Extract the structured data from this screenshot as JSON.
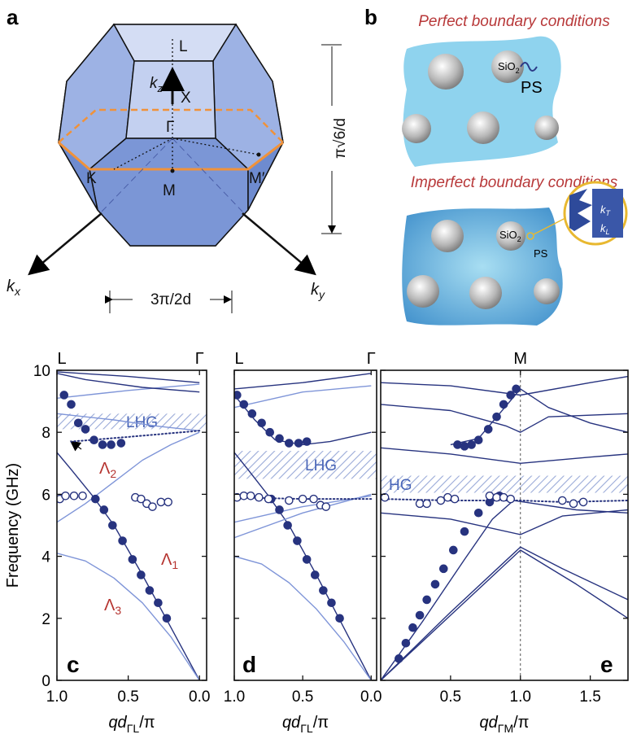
{
  "panel_a": {
    "label": "a",
    "L": "L",
    "X": "X",
    "Gamma": "Γ",
    "K": "K",
    "M": "M",
    "M_prime": "M′",
    "kz": [
      "k",
      "z"
    ],
    "kx": [
      "k",
      "x"
    ],
    "ky": [
      "k",
      "y"
    ],
    "width": "3π/2d",
    "height": "π√6/d"
  },
  "panel_b": {
    "label": "b",
    "perfect": "Perfect boundary conditions",
    "imperfect": "Imperfect boundary conditions",
    "sio2_top": [
      "SiO",
      "2"
    ],
    "ps_top": "PS",
    "sio2_bottom": [
      "SiO",
      "2"
    ],
    "ps_bottom": "PS",
    "kT": [
      "k",
      "T"
    ],
    "kL": [
      "k",
      "L"
    ]
  },
  "chart_data": [
    {
      "type": "line",
      "panel_label": "c",
      "ylabel": "Frequency (GHz)",
      "xlabel": [
        "qd",
        "ΓL",
        "/π"
      ],
      "xlim": [
        1.0,
        -0.05
      ],
      "ylim": [
        0,
        10
      ],
      "yticks": [
        0,
        2,
        4,
        6,
        8,
        10
      ],
      "xticks": [
        {
          "value": 1.0,
          "label": "1.0"
        },
        0.5,
        {
          "value": 0.0,
          "label": "0.0"
        }
      ],
      "top_labels": [
        {
          "value": 1.0,
          "label": "L"
        },
        {
          "value": 0.0,
          "label": "Γ"
        }
      ],
      "bands": [
        {
          "label": "LHG",
          "range": [
            8.1,
            8.6
          ]
        }
      ],
      "annotations": [
        [
          "Λ",
          "2"
        ],
        [
          "Λ",
          "1"
        ],
        [
          "Λ",
          "3"
        ]
      ],
      "series": [
        {
          "color": "#27337f",
          "x": [
            0,
            0.2,
            0.4,
            0.6,
            0.75,
            0.9,
            1.0
          ],
          "values": [
            0,
            1.7,
            3.4,
            5.0,
            5.95,
            6.8,
            7.35
          ]
        },
        {
          "color": "#7f95d8",
          "x": [
            0,
            0.2,
            0.4,
            0.6,
            0.8,
            1.0
          ],
          "values": [
            0,
            1.4,
            2.5,
            3.3,
            3.85,
            4.1
          ]
        },
        {
          "color": "#7f95d8",
          "x": [
            0,
            0.2,
            0.4,
            0.6,
            0.8,
            1.0
          ],
          "values": [
            8.0,
            7.6,
            7.1,
            6.4,
            5.7,
            5.1
          ]
        },
        {
          "color": "#7f95d8",
          "x": [
            0,
            0.3,
            0.6,
            1.0
          ],
          "values": [
            8.05,
            8.2,
            8.4,
            8.6
          ]
        },
        {
          "color": "#7f95d8",
          "x": [
            0,
            0.5,
            1.0
          ],
          "values": [
            9.55,
            9.35,
            9.1
          ]
        },
        {
          "color": "#27337f",
          "x": [
            0,
            0.5,
            1.0
          ],
          "values": [
            9.6,
            9.8,
            9.95
          ]
        },
        {
          "color": "#27337f",
          "x": [
            0,
            0.4,
            0.8,
            1.0
          ],
          "values": [
            9.3,
            9.45,
            9.7,
            9.9
          ]
        },
        {
          "color": "#27337f",
          "style": "dotted",
          "x": [
            0,
            0.5,
            0.9
          ],
          "values": [
            8.05,
            7.85,
            7.7
          ]
        },
        {
          "color": "#27337f",
          "marker": "filled",
          "x": [
            0.23,
            0.29,
            0.35,
            0.41,
            0.47,
            0.54,
            0.61,
            0.67,
            0.73
          ],
          "values": [
            2.0,
            2.5,
            2.9,
            3.4,
            3.9,
            4.5,
            5.0,
            5.5,
            5.85
          ]
        },
        {
          "color": "#27337f",
          "marker": "filled",
          "x": [
            0.95,
            0.9,
            0.85,
            0.8,
            0.74,
            0.68,
            0.62,
            0.55
          ],
          "values": [
            9.2,
            8.9,
            8.3,
            8.1,
            7.75,
            7.6,
            7.6,
            7.65
          ]
        },
        {
          "color": "#27337f",
          "marker": "open",
          "x": [
            0.98,
            0.94,
            0.88,
            0.82,
            0.45,
            0.41,
            0.37,
            0.33,
            0.27,
            0.22
          ],
          "values": [
            5.85,
            5.95,
            5.95,
            5.95,
            5.9,
            5.85,
            5.7,
            5.6,
            5.75,
            5.75
          ]
        }
      ]
    },
    {
      "type": "line",
      "panel_label": "d",
      "xlabel": [
        "qd",
        "ΓL",
        "/π"
      ],
      "xlim": [
        1.0,
        -0.04
      ],
      "ylim": [
        0,
        10
      ],
      "xticks": [
        {
          "value": 1.0,
          "label": "1.0"
        },
        0.5,
        {
          "value": 0.0,
          "label": "0.0"
        }
      ],
      "top_labels": [
        {
          "value": 1.0,
          "label": "L"
        },
        {
          "value": 0.0,
          "label": "Γ"
        }
      ],
      "bands": [
        {
          "label": "LHG",
          "range": [
            6.5,
            7.4
          ]
        }
      ],
      "series": [
        {
          "color": "#27337f",
          "x": [
            0,
            0.2,
            0.4,
            0.6,
            0.75,
            0.9,
            1.0
          ],
          "values": [
            0,
            1.7,
            3.4,
            5.0,
            5.95,
            6.8,
            7.35
          ]
        },
        {
          "color": "#7f95d8",
          "x": [
            0,
            0.2,
            0.4,
            0.6,
            0.8,
            1.0
          ],
          "values": [
            0,
            1.25,
            2.3,
            3.15,
            3.75,
            4.0
          ]
        },
        {
          "color": "#7f95d8",
          "x": [
            0,
            0.5,
            1.0
          ],
          "values": [
            6.0,
            5.4,
            4.6
          ]
        },
        {
          "color": "#7f95d8",
          "x": [
            0,
            0.5,
            1.0
          ],
          "values": [
            5.95,
            5.6,
            5.1
          ]
        },
        {
          "color": "#27337f",
          "x": [
            1.0,
            0.85,
            0.7,
            0.5,
            0.3,
            0.0
          ],
          "values": [
            9.2,
            8.4,
            7.75,
            7.6,
            7.7,
            8.0
          ]
        },
        {
          "color": "#7f95d8",
          "x": [
            0,
            0.5,
            1.0
          ],
          "values": [
            9.5,
            9.3,
            8.8
          ]
        },
        {
          "color": "#27337f",
          "x": [
            0,
            0.5,
            1.0
          ],
          "values": [
            9.9,
            9.6,
            9.4
          ]
        },
        {
          "color": "#27337f",
          "style": "dotted",
          "x": [
            0,
            0.5,
            1.0
          ],
          "values": [
            5.85,
            5.85,
            5.9
          ]
        },
        {
          "color": "#27337f",
          "marker": "filled",
          "x": [
            0.23,
            0.29,
            0.35,
            0.41,
            0.47,
            0.54,
            0.61,
            0.67,
            0.73
          ],
          "values": [
            2.0,
            2.5,
            2.9,
            3.4,
            3.9,
            4.5,
            5.0,
            5.5,
            5.85
          ]
        },
        {
          "color": "#27337f",
          "marker": "filled",
          "x": [
            0.98,
            0.93,
            0.87,
            0.8,
            0.74,
            0.67,
            0.6,
            0.53,
            0.47
          ],
          "values": [
            9.2,
            8.9,
            8.6,
            8.3,
            8.0,
            7.8,
            7.65,
            7.65,
            7.7
          ]
        },
        {
          "color": "#27337f",
          "marker": "open",
          "x": [
            0.98,
            0.93,
            0.88,
            0.82,
            0.75,
            0.6,
            0.5,
            0.42,
            0.37,
            0.33
          ],
          "values": [
            5.9,
            5.95,
            5.95,
            5.9,
            5.85,
            5.8,
            5.85,
            5.85,
            5.65,
            5.6
          ]
        }
      ]
    },
    {
      "type": "line",
      "panel_label": "e",
      "xlabel": [
        "qd",
        "ΓM",
        "/π"
      ],
      "xlim": [
        0,
        1.77
      ],
      "ylim": [
        0,
        10
      ],
      "xticks": [
        0.5,
        {
          "value": 1.0,
          "label": "1.0"
        },
        1.5
      ],
      "top_labels": [
        {
          "value": 1.0,
          "label": "M"
        }
      ],
      "vline": 1.0,
      "bands": [
        {
          "label": "HG",
          "range": [
            6.05,
            6.6
          ]
        }
      ],
      "series": [
        {
          "color": "#27337f",
          "x": [
            0,
            0.5,
            1.0,
            1.3,
            1.77
          ],
          "values": [
            0,
            2.2,
            4.3,
            3.6,
            2.6
          ]
        },
        {
          "color": "#27337f",
          "x": [
            0,
            0.5,
            1.0,
            1.4,
            1.77
          ],
          "values": [
            0,
            2.1,
            4.2,
            3.1,
            2.0
          ]
        },
        {
          "color": "#27337f",
          "x": [
            0,
            0.3,
            0.6,
            0.8,
            0.95,
            1.1,
            1.4,
            1.77
          ],
          "values": [
            0,
            1.9,
            3.9,
            5.2,
            5.8,
            5.7,
            5.5,
            5.4
          ]
        },
        {
          "color": "#27337f",
          "x": [
            0.5,
            0.7,
            0.85,
            1.0,
            1.2,
            1.5,
            1.77
          ],
          "values": [
            7.6,
            7.8,
            8.6,
            9.4,
            8.8,
            8.3,
            8.0
          ]
        },
        {
          "color": "#27337f",
          "style": "dotted",
          "x": [
            0,
            0.5,
            1.0,
            1.3,
            1.77
          ],
          "values": [
            5.85,
            5.8,
            5.8,
            5.75,
            5.8
          ]
        },
        {
          "color": "#27337f",
          "x": [
            0,
            0.5,
            1.0,
            1.5,
            1.77
          ],
          "values": [
            7.5,
            7.3,
            7.0,
            7.2,
            7.3
          ]
        },
        {
          "color": "#27337f",
          "x": [
            0,
            0.5,
            0.9,
            1.0,
            1.2,
            1.77
          ],
          "values": [
            8.9,
            8.7,
            8.2,
            8.0,
            8.5,
            8.6
          ]
        },
        {
          "color": "#27337f",
          "x": [
            0,
            0.5,
            1.0,
            1.5,
            1.77
          ],
          "values": [
            9.6,
            9.5,
            9.2,
            9.6,
            9.8
          ]
        },
        {
          "color": "#27337f",
          "x": [
            0,
            0.5,
            1.0,
            1.3,
            1.77
          ],
          "values": [
            5.4,
            5.2,
            4.7,
            5.3,
            5.5
          ]
        },
        {
          "color": "#27337f",
          "marker": "filled",
          "x": [
            0.13,
            0.18,
            0.23,
            0.28,
            0.33,
            0.39,
            0.45,
            0.52,
            0.6,
            0.7,
            0.78,
            0.85
          ],
          "values": [
            0.7,
            1.2,
            1.7,
            2.1,
            2.6,
            3.1,
            3.6,
            4.2,
            4.8,
            5.4,
            5.75,
            5.95
          ]
        },
        {
          "color": "#27337f",
          "marker": "filled",
          "x": [
            0.55,
            0.6,
            0.65,
            0.7,
            0.77,
            0.83,
            0.88,
            0.93,
            0.97
          ],
          "values": [
            7.6,
            7.55,
            7.6,
            7.75,
            8.1,
            8.5,
            8.9,
            9.2,
            9.4
          ]
        },
        {
          "color": "#27337f",
          "marker": "open",
          "x": [
            0.03,
            0.28,
            0.33,
            0.43,
            0.48,
            0.53,
            0.78,
            0.83,
            0.88,
            0.93,
            1.3,
            1.38,
            1.45
          ],
          "values": [
            5.9,
            5.7,
            5.7,
            5.8,
            5.9,
            5.85,
            5.95,
            5.9,
            5.9,
            5.85,
            5.8,
            5.7,
            5.75
          ]
        }
      ]
    }
  ]
}
